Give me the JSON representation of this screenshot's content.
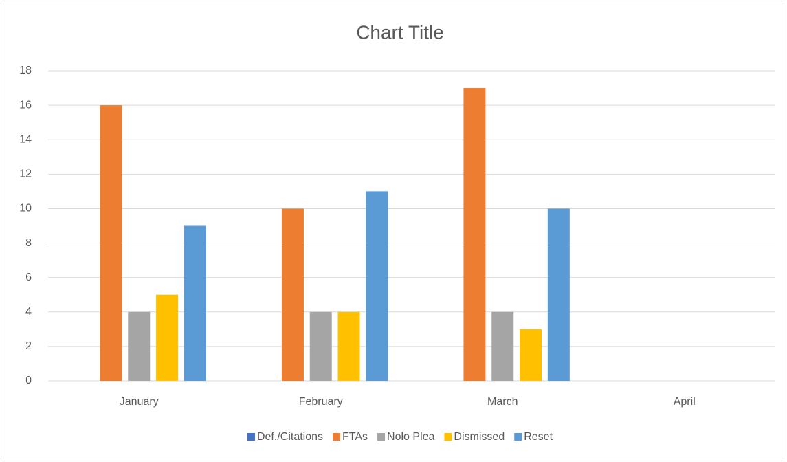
{
  "chart_data": {
    "type": "bar",
    "title": "Chart Title",
    "categories": [
      "January",
      "February",
      "March",
      "April"
    ],
    "series": [
      {
        "name": "Def./Citations",
        "color": "#4472c4",
        "values": [
          null,
          null,
          null,
          null
        ]
      },
      {
        "name": "FTAs",
        "color": "#ed7d31",
        "values": [
          16,
          10,
          17,
          null
        ]
      },
      {
        "name": "Nolo Plea",
        "color": "#a5a5a5",
        "values": [
          4,
          4,
          4,
          null
        ]
      },
      {
        "name": "Dismissed",
        "color": "#ffc000",
        "values": [
          5,
          4,
          3,
          null
        ]
      },
      {
        "name": "Reset",
        "color": "#5b9bd5",
        "values": [
          9,
          11,
          10,
          null
        ]
      }
    ],
    "ylim": [
      0,
      18
    ],
    "yticks": [
      0,
      2,
      4,
      6,
      8,
      10,
      12,
      14,
      16,
      18
    ],
    "grid": true,
    "legend": "bottom"
  }
}
